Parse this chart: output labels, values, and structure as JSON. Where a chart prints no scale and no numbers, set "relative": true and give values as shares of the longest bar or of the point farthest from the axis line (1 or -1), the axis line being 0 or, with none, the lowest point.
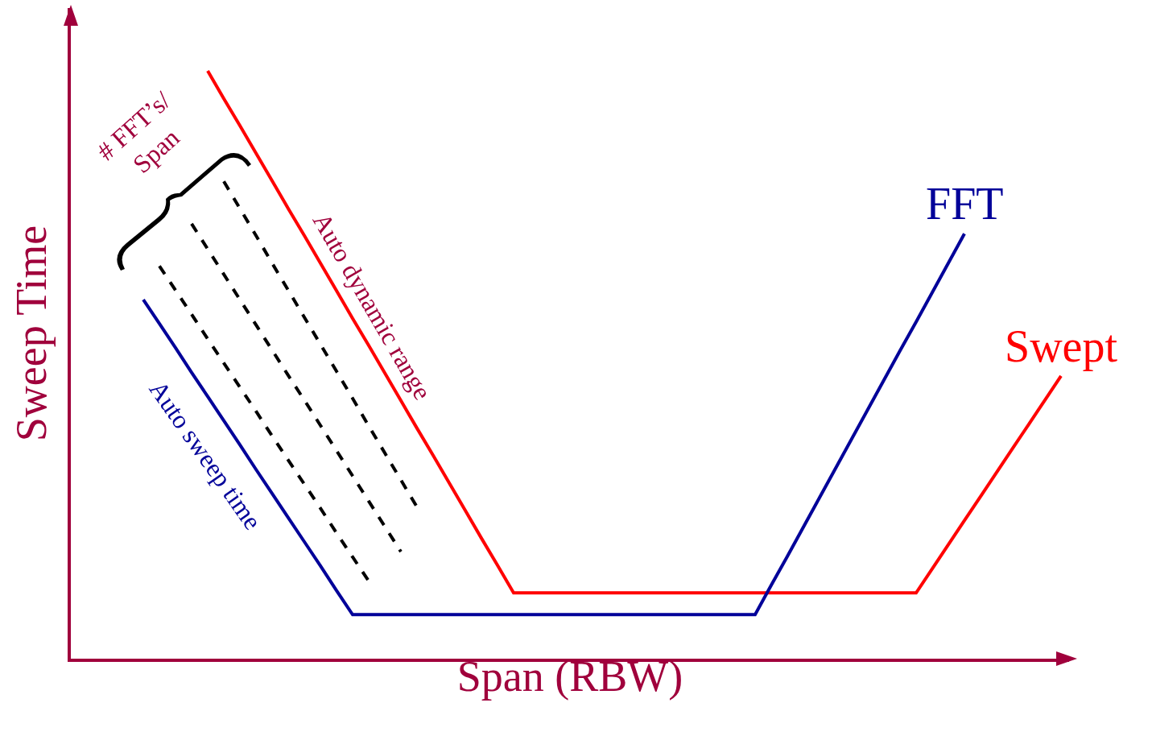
{
  "chart_data": {
    "type": "line",
    "relative": true,
    "xlabel": "Span (RBW)",
    "ylabel": "Sweep Time",
    "grid": false,
    "legend": false,
    "marker": "none",
    "categories": [
      null,
      null,
      null,
      null,
      null,
      null,
      null,
      null,
      null,
      null,
      null,
      null,
      null,
      null,
      null,
      null,
      null,
      null,
      null,
      null,
      null,
      null,
      null,
      null,
      null,
      null,
      null,
      null,
      null,
      null,
      null,
      null,
      null,
      null,
      null,
      null,
      null,
      null,
      null,
      null,
      null,
      null,
      null,
      null,
      null,
      null,
      null,
      null,
      null,
      null,
      null,
      null,
      null,
      null,
      null,
      null,
      null,
      null,
      null,
      null,
      null,
      null
    ],
    "series": [
      {
        "name": "Swept",
        "color": "#ff0000",
        "values": [
          null,
          null,
          null,
          null,
          null,
          null,
          null,
          null,
          1,
          0.953,
          0.907,
          0.86,
          0.813,
          0.766,
          0.72,
          0.673,
          0.626,
          0.579,
          0.533,
          0.486,
          0.439,
          0.392,
          0.346,
          0.299,
          0.252,
          0.205,
          0.159,
          0.112,
          0.112,
          0.112,
          0.112,
          0.112,
          0.112,
          0.112,
          0.112,
          0.112,
          0.112,
          0.112,
          0.112,
          0.112,
          0.112,
          0.112,
          0.112,
          0.112,
          0.112,
          0.112,
          0.112,
          0.112,
          0.112,
          0.112,
          0.112,
          0.112,
          0.112,
          0.153,
          0.194,
          0.235,
          0.276,
          0.317,
          0.358,
          0.399,
          0.44,
          0.481
        ]
      },
      {
        "name": "FFT",
        "color": "#000099",
        "values": [
          null,
          null,
          null,
          null,
          0.611,
          0.57,
          0.529,
          0.487,
          0.446,
          0.405,
          0.364,
          0.322,
          0.281,
          0.24,
          0.199,
          0.158,
          0.116,
          0.075,
          0.075,
          0.075,
          0.075,
          0.075,
          0.075,
          0.075,
          0.075,
          0.075,
          0.075,
          0.075,
          0.075,
          0.075,
          0.075,
          0.075,
          0.075,
          0.075,
          0.075,
          0.075,
          0.075,
          0.075,
          0.075,
          0.075,
          0.075,
          0.075,
          0.075,
          0.125,
          0.174,
          0.224,
          0.274,
          0.324,
          0.374,
          0.424,
          0.474,
          0.524,
          0.573,
          0.623,
          0.673,
          0.723,
          null,
          null,
          null,
          null,
          null,
          null
        ]
      },
      {
        "color": "#000000",
        "line_style": "dashed",
        "values": [
          null,
          null,
          null,
          null,
          null,
          0.668,
          0.627,
          0.586,
          0.544,
          0.503,
          0.462,
          0.421,
          0.379,
          0.338,
          0.297,
          0.256,
          0.214,
          0.173,
          0.132,
          null,
          null,
          null,
          null,
          null,
          null,
          null,
          null,
          null,
          null,
          null,
          null,
          null,
          null,
          null,
          null,
          null,
          null,
          null,
          null,
          null,
          null,
          null,
          null,
          null,
          null,
          null,
          null,
          null,
          null,
          null,
          null,
          null,
          null,
          null,
          null,
          null,
          null,
          null,
          null,
          null,
          null,
          null
        ]
      },
      {
        "color": "#000000",
        "line_style": "dashed",
        "values": [
          null,
          null,
          null,
          null,
          null,
          null,
          null,
          0.74,
          0.697,
          0.654,
          0.611,
          0.568,
          0.525,
          0.482,
          0.44,
          0.397,
          0.354,
          0.311,
          0.268,
          0.225,
          0.182,
          null,
          null,
          null,
          null,
          null,
          null,
          null,
          null,
          null,
          null,
          null,
          null,
          null,
          null,
          null,
          null,
          null,
          null,
          null,
          null,
          null,
          null,
          null,
          null,
          null,
          null,
          null,
          null,
          null,
          null,
          null,
          null,
          null,
          null,
          null,
          null,
          null,
          null,
          null,
          null,
          null
        ]
      },
      {
        "color": "#000000",
        "line_style": "dashed",
        "values": [
          null,
          null,
          null,
          null,
          null,
          null,
          null,
          null,
          null,
          0.812,
          0.766,
          0.72,
          0.673,
          0.627,
          0.581,
          0.535,
          0.489,
          0.443,
          0.396,
          0.35,
          0.304,
          0.258,
          null,
          null,
          null,
          null,
          null,
          null,
          null,
          null,
          null,
          null,
          null,
          null,
          null,
          null,
          null,
          null,
          null,
          null,
          null,
          null,
          null,
          null,
          null,
          null,
          null,
          null,
          null,
          null,
          null,
          null,
          null,
          null,
          null,
          null,
          null,
          null,
          null,
          null,
          null,
          null
        ]
      }
    ],
    "annotations": [
      "Auto sweep time",
      "Auto dynamic range",
      "# FFT’s/\nSpan"
    ]
  }
}
